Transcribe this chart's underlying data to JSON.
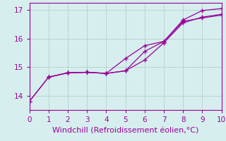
{
  "xlabel": "Windchill (Refroidissement éolien,°C)",
  "background_color": "#d6eeee",
  "line_color": "#990099",
  "xlim": [
    0,
    10
  ],
  "ylim": [
    13.5,
    17.25
  ],
  "xticks": [
    0,
    1,
    2,
    3,
    4,
    5,
    6,
    7,
    8,
    9,
    10
  ],
  "yticks": [
    14,
    15,
    16,
    17
  ],
  "line1_x": [
    0,
    1,
    2,
    3,
    4,
    5,
    6,
    7,
    8,
    9,
    10
  ],
  "line1_y": [
    13.8,
    14.65,
    14.8,
    14.82,
    14.78,
    14.87,
    15.25,
    15.85,
    16.55,
    16.75,
    16.85
  ],
  "line2_x": [
    0,
    1,
    2,
    3,
    4,
    5,
    6,
    7,
    8,
    9,
    10
  ],
  "line2_y": [
    13.8,
    14.65,
    14.8,
    14.82,
    14.78,
    14.87,
    15.55,
    15.9,
    16.6,
    16.72,
    16.82
  ],
  "line3_x": [
    1,
    2,
    3,
    4,
    5,
    6,
    7,
    8,
    9,
    10
  ],
  "line3_y": [
    14.65,
    14.8,
    14.82,
    14.78,
    15.3,
    15.75,
    15.9,
    16.65,
    16.98,
    17.05
  ],
  "grid_color": "#b0c8c8",
  "font_color": "#990099",
  "xlabel_fontsize": 8,
  "tick_fontsize": 7.5
}
